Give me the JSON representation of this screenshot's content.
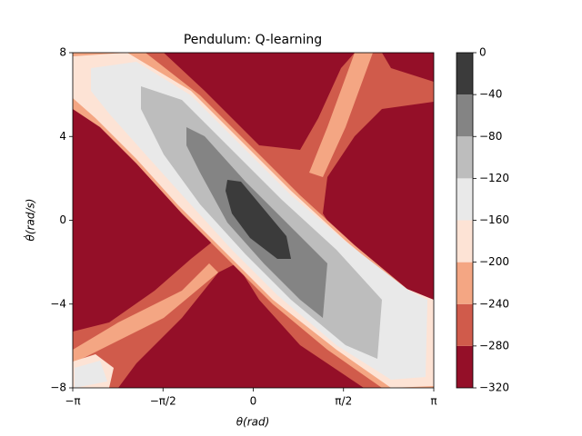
{
  "chart_data": {
    "type": "contourf",
    "title": "Pendulum: Q-learning",
    "x_label": "θ(rad)",
    "y_label": "θ̇(rad/s)",
    "xlim": [
      -3.14159,
      3.14159
    ],
    "xticks": [
      {
        "value": -3.14159,
        "label": "−π"
      },
      {
        "value": -1.5708,
        "label": "−π/2"
      },
      0,
      {
        "value": 1.5708,
        "label": "π/2"
      },
      {
        "value": 3.14159,
        "label": "π"
      }
    ],
    "ylim": [
      -8,
      8
    ],
    "yticks": [
      {
        "value": -8,
        "label": "−8"
      },
      {
        "value": -4,
        "label": "−4"
      },
      0,
      4,
      8
    ],
    "levels": [
      {
        "value": -320,
        "label": "−320"
      },
      {
        "value": -280,
        "label": "−280"
      },
      {
        "value": -240,
        "label": "−240"
      },
      {
        "value": -200,
        "label": "−200"
      },
      {
        "value": -160,
        "label": "−160"
      },
      {
        "value": -120,
        "label": "−120"
      },
      {
        "value": -80,
        "label": "−80"
      },
      {
        "value": -40,
        "label": "−40"
      },
      0
    ],
    "colors": [
      "#940f28",
      "#d05b4b",
      "#f4a683",
      "#fde3d5",
      "#e9e9e9",
      "#bdbdbd",
      "#848484",
      "#3b3b3b"
    ]
  }
}
